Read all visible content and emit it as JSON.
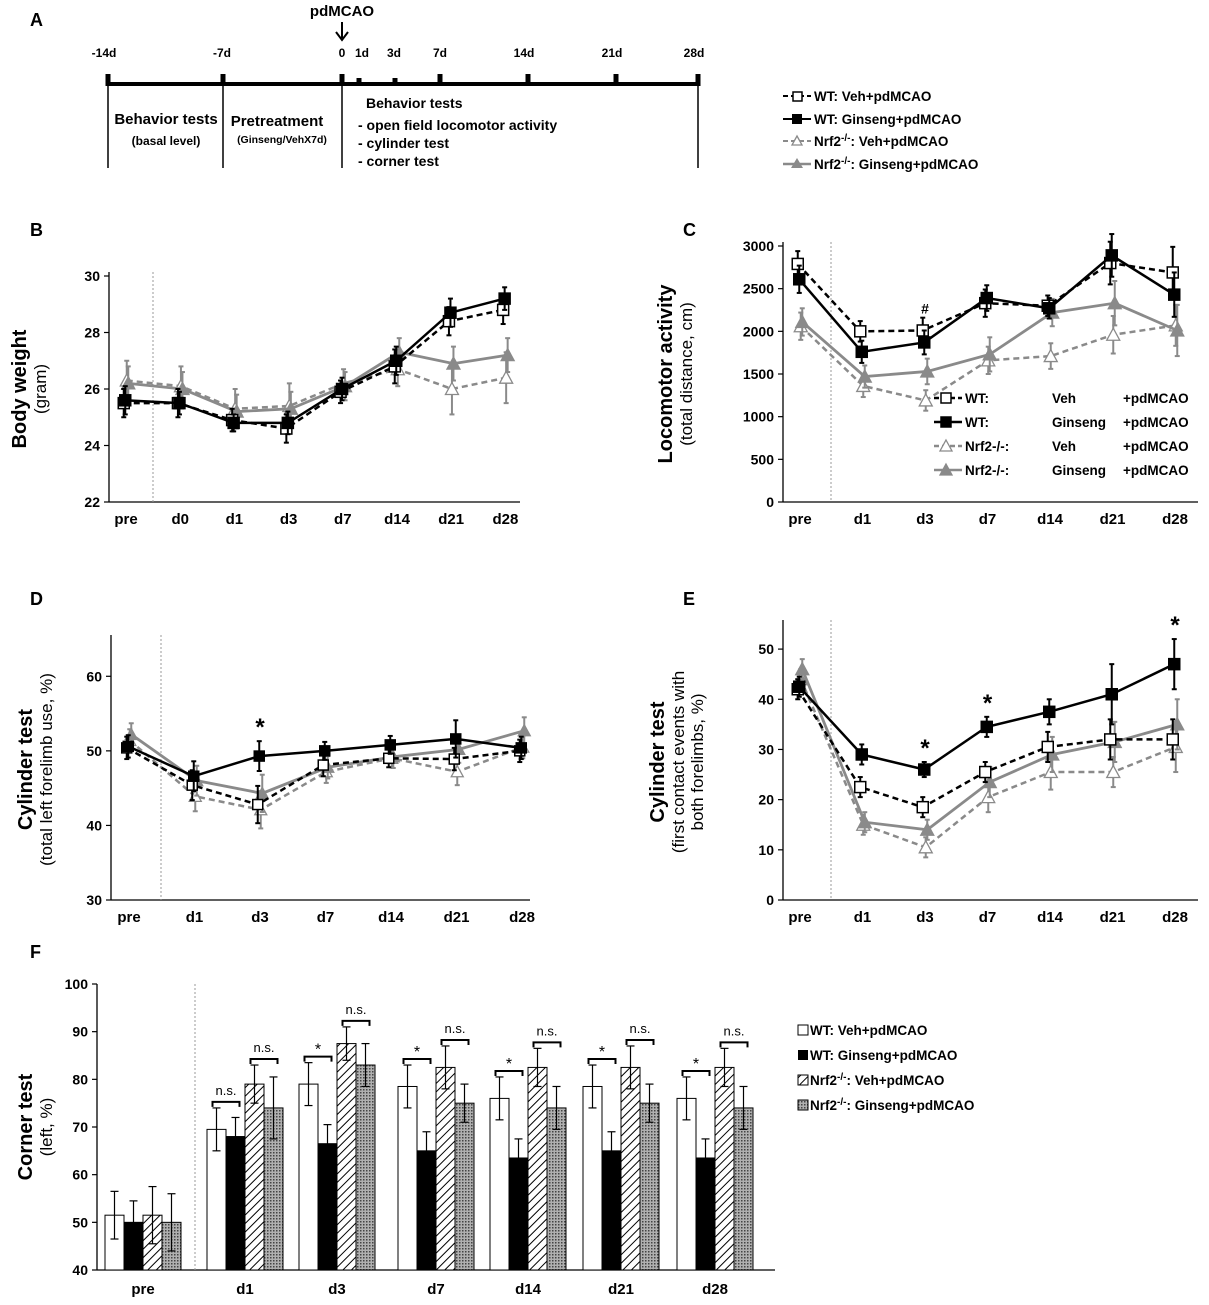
{
  "colors": {
    "black": "#000000",
    "gray": "#8a8a8a",
    "dashgray": "#8a8a8a"
  },
  "timeline": {
    "panel": "A",
    "event": "pdMCAO",
    "ticks": [
      "-14d",
      "-7d",
      "0",
      "1d",
      "3d",
      "7d",
      "14d",
      "21d",
      "28d"
    ],
    "phase1": {
      "title": "Behavior tests",
      "sub": "(basal level)"
    },
    "phase2": {
      "title": "Pretreatment",
      "sub": "(Ginseng/VehX7d)"
    },
    "phase3": {
      "title": "Behavior tests",
      "items": [
        "- open field locomotor activity",
        "- cylinder test",
        "- corner test"
      ]
    }
  },
  "legend_top": [
    "WT: Veh+pdMCAO",
    "WT: Ginseng+pdMCAO",
    "Nrf2",
    "-/-",
    ": Veh+pdMCAO",
    "Nrf2",
    "-/-",
    ": Ginseng+pdMCAO"
  ],
  "chart_data": [
    {
      "panel": "B",
      "type": "line",
      "ylabel": "Body weight",
      "ysub": "(gram)",
      "categories": [
        "pre",
        "d0",
        "d1",
        "d3",
        "d7",
        "d14",
        "d21",
        "d28"
      ],
      "ylim": [
        22,
        30
      ],
      "yticks": [
        22,
        24,
        26,
        28,
        30
      ],
      "series": [
        {
          "name": "WT: Veh+pdMCAO",
          "values": [
            25.5,
            25.5,
            24.9,
            24.6,
            25.9,
            26.8,
            28.4,
            28.8
          ],
          "err": [
            0.5,
            0.5,
            0.4,
            0.5,
            0.4,
            0.6,
            0.5,
            0.5
          ]
        },
        {
          "name": "WT: Ginseng+pdMCAO",
          "values": [
            25.6,
            25.5,
            24.8,
            24.8,
            26.0,
            27.0,
            28.7,
            29.2
          ],
          "err": [
            0.5,
            0.4,
            0.3,
            0.4,
            0.4,
            0.5,
            0.5,
            0.4
          ]
        },
        {
          "name": "Nrf2-/-: Veh+pdMCAO",
          "values": [
            26.3,
            26.1,
            25.3,
            25.4,
            26.2,
            26.7,
            26.0,
            26.4
          ],
          "err": [
            0.7,
            0.7,
            0.7,
            0.8,
            0.5,
            0.6,
            0.9,
            0.9
          ]
        },
        {
          "name": "Nrf2-/-: Ginseng+pdMCAO",
          "values": [
            26.2,
            26.0,
            25.2,
            25.3,
            26.1,
            27.3,
            26.9,
            27.2
          ],
          "err": [
            0.6,
            0.6,
            0.6,
            0.6,
            0.5,
            0.5,
            0.6,
            0.6
          ]
        }
      ]
    },
    {
      "panel": "C",
      "type": "line",
      "ylabel": "Locomotor activity",
      "ysub": "(total distance, cm)",
      "categories": [
        "pre",
        "d1",
        "d3",
        "d7",
        "d14",
        "d21",
        "d28"
      ],
      "ylim": [
        0,
        3000
      ],
      "yticks": [
        0,
        500,
        1000,
        1500,
        2000,
        2500,
        3000
      ],
      "annotations": [
        {
          "category": "d3",
          "text": "#"
        }
      ],
      "legend": [
        {
          "strain": "WT:",
          "treat": "Veh",
          "event": "+pdMCAO"
        },
        {
          "strain": "WT:",
          "treat": "Ginseng",
          "event": "+pdMCAO"
        },
        {
          "strain": "Nrf2-/-:",
          "treat": "Veh",
          "event": "+pdMCAO"
        },
        {
          "strain": "Nrf2-/-:",
          "treat": "Ginseng",
          "event": "+pdMCAO"
        }
      ],
      "series": [
        {
          "name": "WT: Veh+pdMCAO",
          "values": [
            2790,
            2000,
            2010,
            2330,
            2300,
            2800,
            2690
          ],
          "err": [
            150,
            120,
            150,
            160,
            120,
            250,
            300
          ]
        },
        {
          "name": "WT: Ginseng+pdMCAO",
          "values": [
            2610,
            1760,
            1870,
            2390,
            2270,
            2890,
            2430
          ],
          "err": [
            160,
            130,
            140,
            150,
            120,
            250,
            260
          ]
        },
        {
          "name": "Nrf2-/-: Veh+pdMCAO",
          "values": [
            2060,
            1360,
            1190,
            1660,
            1710,
            1960,
            2070
          ],
          "err": [
            160,
            130,
            120,
            160,
            150,
            220,
            240
          ]
        },
        {
          "name": "Nrf2-/-: Ginseng+pdMCAO",
          "values": [
            2110,
            1470,
            1530,
            1730,
            2220,
            2330,
            2010
          ],
          "err": [
            160,
            130,
            150,
            200,
            160,
            260,
            300
          ]
        }
      ]
    },
    {
      "panel": "D",
      "type": "line",
      "ylabel": "Cylinder test",
      "ysub": "(total left forelimb use, %)",
      "categories": [
        "pre",
        "d1",
        "d3",
        "d7",
        "d14",
        "d21",
        "d28"
      ],
      "ylim": [
        30,
        65
      ],
      "yticks": [
        30,
        40,
        50,
        60
      ],
      "annotations": [
        {
          "category": "d3",
          "text": "*"
        }
      ],
      "series": [
        {
          "name": "WT: Veh+pdMCAO",
          "values": [
            50.4,
            45.4,
            42.8,
            48.1,
            49.0,
            48.9,
            50.0
          ],
          "err": [
            1.5,
            2.0,
            2.5,
            1.5,
            1.2,
            1.5,
            1.5
          ]
        },
        {
          "name": "WT: Ginseng+pdMCAO",
          "values": [
            50.6,
            46.6,
            49.3,
            50.0,
            50.8,
            51.6,
            50.4
          ],
          "err": [
            1.5,
            2.0,
            2.0,
            1.2,
            1.2,
            2.5,
            1.5
          ]
        },
        {
          "name": "Nrf2-/-: Veh+pdMCAO",
          "values": [
            51.4,
            43.9,
            42.1,
            47.2,
            49.0,
            47.2,
            50.5
          ],
          "err": [
            1.5,
            2.0,
            2.5,
            1.5,
            1.2,
            1.8,
            1.5
          ]
        },
        {
          "name": "Nrf2-/-: Ginseng+pdMCAO",
          "values": [
            52.2,
            46.0,
            44.3,
            47.8,
            49.2,
            50.2,
            52.7
          ],
          "err": [
            1.5,
            2.0,
            2.5,
            1.5,
            1.5,
            1.8,
            1.8
          ]
        }
      ]
    },
    {
      "panel": "E",
      "type": "line",
      "ylabel": "Cylinder test",
      "ysub1": "(first contact events with",
      "ysub2": "both forelimbs, %)",
      "categories": [
        "pre",
        "d1",
        "d3",
        "d7",
        "d14",
        "d21",
        "d28"
      ],
      "ylim": [
        0,
        55
      ],
      "yticks": [
        0,
        10,
        20,
        30,
        40,
        50
      ],
      "annotations": [
        {
          "category": "d3",
          "text": "*"
        },
        {
          "category": "d7",
          "text": "*"
        },
        {
          "category": "d28",
          "text": "*"
        }
      ],
      "series": [
        {
          "name": "WT: Veh+pdMCAO",
          "values": [
            42.0,
            22.5,
            18.5,
            25.5,
            30.5,
            32.0,
            32.0
          ],
          "err": [
            2,
            2,
            2,
            2,
            3,
            4,
            4
          ]
        },
        {
          "name": "WT: Ginseng+pdMCAO",
          "values": [
            42.5,
            29.0,
            26.0,
            34.5,
            37.5,
            41.0,
            47.0
          ],
          "err": [
            2,
            2,
            1.5,
            2,
            2.5,
            6,
            5
          ]
        },
        {
          "name": "Nrf2-/-: Veh+pdMCAO",
          "values": [
            44.0,
            15.0,
            10.5,
            20.5,
            25.5,
            25.5,
            30.5
          ],
          "err": [
            2,
            2,
            2,
            3,
            3.5,
            3,
            5
          ]
        },
        {
          "name": "Nrf2-/-: Ginseng+pdMCAO",
          "values": [
            46.0,
            15.5,
            14.0,
            23.5,
            29.0,
            31.5,
            35.0
          ],
          "err": [
            2,
            2,
            2,
            3,
            3.5,
            4,
            5
          ]
        }
      ]
    },
    {
      "panel": "F",
      "type": "bar",
      "ylabel": "Corner test",
      "ysub": "(left, %)",
      "categories": [
        "pre",
        "d1",
        "d3",
        "d7",
        "d14",
        "d21",
        "d28"
      ],
      "ylim": [
        40,
        100
      ],
      "yticks": [
        40,
        50,
        60,
        70,
        80,
        90,
        100
      ],
      "series": [
        {
          "name": "WT: Veh+pdMCAO",
          "values": [
            51.5,
            69.5,
            79.0,
            78.5,
            76.0,
            78.5,
            76.0
          ],
          "err": [
            5,
            4.5,
            4.5,
            4.5,
            4.5,
            4.5,
            4.5
          ]
        },
        {
          "name": "WT: Ginseng+pdMCAO",
          "values": [
            50.0,
            68.0,
            66.5,
            65.0,
            63.5,
            65.0,
            63.5
          ],
          "err": [
            4.5,
            4,
            4,
            4,
            4,
            4,
            4
          ]
        },
        {
          "name": "Nrf2-/-: Veh+pdMCAO",
          "values": [
            51.5,
            79.0,
            87.5,
            82.5,
            82.5,
            82.5,
            82.5
          ],
          "err": [
            6,
            4,
            3.5,
            4.5,
            4,
            4.5,
            4
          ]
        },
        {
          "name": "Nrf2-/-: Ginseng+pdMCAO",
          "values": [
            50.0,
            74.0,
            83.0,
            75.0,
            74.0,
            75.0,
            74.0
          ],
          "err": [
            6,
            6.5,
            4.5,
            4,
            4.5,
            4,
            4.5
          ]
        }
      ],
      "significance": [
        {
          "category": "d1",
          "pair": "WT",
          "text": "n.s."
        },
        {
          "category": "d1",
          "pair": "Nrf2",
          "text": "n.s."
        },
        {
          "category": "d3",
          "pair": "WT",
          "text": "*"
        },
        {
          "category": "d3",
          "pair": "Nrf2",
          "text": "n.s."
        },
        {
          "category": "d7",
          "pair": "WT",
          "text": "*"
        },
        {
          "category": "d7",
          "pair": "Nrf2",
          "text": "n.s."
        },
        {
          "category": "d14",
          "pair": "WT",
          "text": "*"
        },
        {
          "category": "d14",
          "pair": "Nrf2",
          "text": "n.s."
        },
        {
          "category": "d21",
          "pair": "WT",
          "text": "*"
        },
        {
          "category": "d21",
          "pair": "Nrf2",
          "text": "n.s."
        },
        {
          "category": "d28",
          "pair": "WT",
          "text": "*"
        },
        {
          "category": "d28",
          "pair": "Nrf2",
          "text": "n.s."
        }
      ],
      "legend": [
        "WT: Veh+pdMCAO",
        "WT: Ginseng+pdMCAO",
        "Nrf2",
        "-/-",
        ": Veh+pdMCAO",
        "Nrf2",
        "-/-",
        ": Ginseng+pdMCAO"
      ]
    }
  ]
}
